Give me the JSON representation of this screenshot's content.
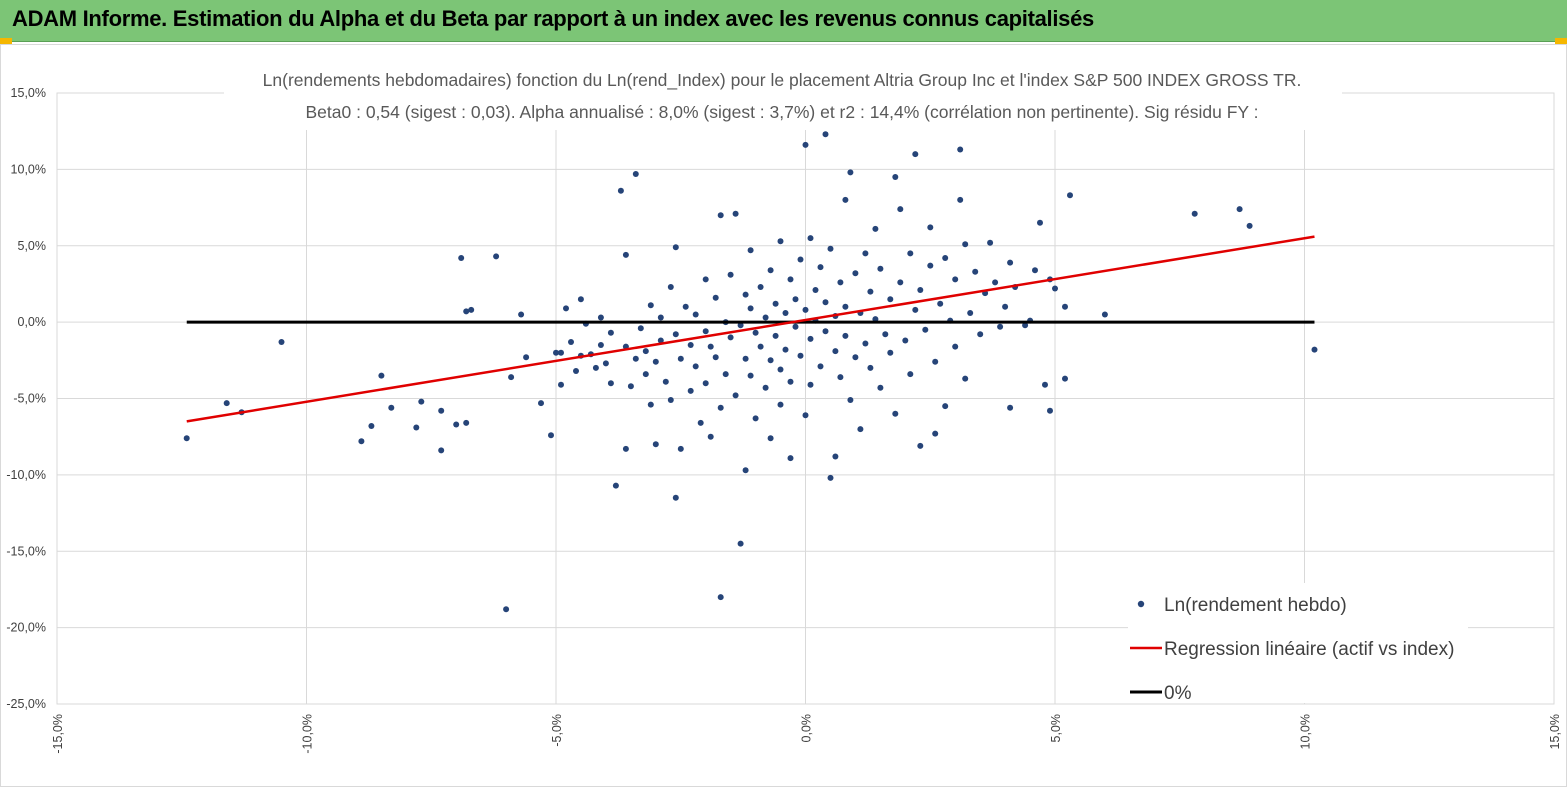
{
  "header": {
    "title": "ADAM Informe. Estimation du Alpha et du Beta par rapport à un index avec les revenus connus capitalisés"
  },
  "colors": {
    "banner": "#7cc576",
    "points": "#264478",
    "regression": "#e00000",
    "zero_line": "#000000",
    "corner_accent": "#f5b700"
  },
  "chart_data": {
    "type": "scatter",
    "title_lines": [
      "Ln(rendements hebdomadaires) fonction du Ln(rend_Index) pour le placement Altria Group Inc et l'index S&P 500 INDEX GROSS TR.",
      "Beta0 : 0,54  (sigest : 0,03). Alpha annualisé : 8,0% (sigest : 3,7%) et r2 : 14,4% (corrélation non pertinente). Sig résidu FY :"
    ],
    "xlim": [
      -15,
      15
    ],
    "ylim": [
      -25,
      15
    ],
    "x_ticks": [
      "-15,0%",
      "-10,0%",
      "-5,0%",
      "0,0%",
      "5,0%",
      "10,0%",
      "15,0%"
    ],
    "y_ticks": [
      "15,0%",
      "10,0%",
      "5,0%",
      "0,0%",
      "-5,0%",
      "-10,0%",
      "-15,0%",
      "-20,0%",
      "-25,0%"
    ],
    "grid": true,
    "legend_position": "bottom-right",
    "legend": [
      {
        "label": "Ln(rendement hebdo)",
        "kind": "marker"
      },
      {
        "label": "Regression linéaire (actif vs index)",
        "kind": "line"
      },
      {
        "label": "0%",
        "kind": "line"
      }
    ],
    "series": [
      {
        "name": "Ln(rendement hebdo)",
        "points": [
          [
            -12.4,
            -7.6
          ],
          [
            -11.6,
            -5.3
          ],
          [
            -11.3,
            -5.9
          ],
          [
            -10.5,
            -1.3
          ],
          [
            -8.9,
            -7.8
          ],
          [
            -8.7,
            -6.8
          ],
          [
            -8.5,
            -3.5
          ],
          [
            -8.3,
            -5.6
          ],
          [
            -7.8,
            -6.9
          ],
          [
            -7.7,
            -5.2
          ],
          [
            -7.3,
            -5.8
          ],
          [
            -7.3,
            -8.4
          ],
          [
            -7.0,
            -6.7
          ],
          [
            -6.9,
            4.2
          ],
          [
            -6.8,
            0.7
          ],
          [
            -6.8,
            -6.6
          ],
          [
            -6.7,
            0.8
          ],
          [
            -6.2,
            4.3
          ],
          [
            -6.0,
            -18.8
          ],
          [
            -5.9,
            -3.6
          ],
          [
            -5.7,
            0.5
          ],
          [
            -5.6,
            -2.3
          ],
          [
            -5.3,
            -5.3
          ],
          [
            -5.1,
            -7.4
          ],
          [
            -5.0,
            -2.0
          ],
          [
            -4.9,
            -2.0
          ],
          [
            -4.9,
            -4.1
          ],
          [
            -4.8,
            0.9
          ],
          [
            -4.7,
            -1.3
          ],
          [
            -4.6,
            -3.2
          ],
          [
            -4.5,
            1.5
          ],
          [
            -4.5,
            -2.2
          ],
          [
            -4.4,
            -0.1
          ],
          [
            -4.3,
            -2.1
          ],
          [
            -4.2,
            -3.0
          ],
          [
            -4.1,
            0.3
          ],
          [
            -4.1,
            -1.5
          ],
          [
            -4.0,
            -2.7
          ],
          [
            -3.9,
            -0.7
          ],
          [
            -3.9,
            -4.0
          ],
          [
            -3.8,
            -10.7
          ],
          [
            -3.7,
            8.6
          ],
          [
            -3.6,
            4.4
          ],
          [
            -3.6,
            -1.6
          ],
          [
            -3.6,
            -8.3
          ],
          [
            -3.5,
            -4.2
          ],
          [
            -3.4,
            9.7
          ],
          [
            -3.4,
            -2.4
          ],
          [
            -3.3,
            -0.4
          ],
          [
            -3.2,
            -1.9
          ],
          [
            -3.2,
            -3.4
          ],
          [
            -3.1,
            1.1
          ],
          [
            -3.1,
            -5.4
          ],
          [
            -3.0,
            -2.6
          ],
          [
            -3.0,
            -8.0
          ],
          [
            -2.9,
            0.3
          ],
          [
            -2.9,
            -1.2
          ],
          [
            -2.8,
            -3.9
          ],
          [
            -2.7,
            2.3
          ],
          [
            -2.7,
            -5.1
          ],
          [
            -2.6,
            4.9
          ],
          [
            -2.6,
            -0.8
          ],
          [
            -2.6,
            -11.5
          ],
          [
            -2.5,
            -2.4
          ],
          [
            -2.5,
            -8.3
          ],
          [
            -2.4,
            1.0
          ],
          [
            -2.3,
            -1.5
          ],
          [
            -2.3,
            -4.5
          ],
          [
            -2.2,
            0.5
          ],
          [
            -2.2,
            -2.9
          ],
          [
            -2.1,
            -6.6
          ],
          [
            -2.0,
            2.8
          ],
          [
            -2.0,
            -0.6
          ],
          [
            -2.0,
            -4.0
          ],
          [
            -1.9,
            -1.6
          ],
          [
            -1.9,
            -7.5
          ],
          [
            -1.8,
            1.6
          ],
          [
            -1.8,
            -2.3
          ],
          [
            -1.7,
            7.0
          ],
          [
            -1.7,
            -5.6
          ],
          [
            -1.7,
            -18.0
          ],
          [
            -1.6,
            0.0
          ],
          [
            -1.6,
            -3.4
          ],
          [
            -1.5,
            3.1
          ],
          [
            -1.5,
            -1.0
          ],
          [
            -1.4,
            7.1
          ],
          [
            -1.4,
            -4.8
          ],
          [
            -1.3,
            -0.2
          ],
          [
            -1.3,
            -14.5
          ],
          [
            -1.2,
            1.8
          ],
          [
            -1.2,
            -2.4
          ],
          [
            -1.2,
            -9.7
          ],
          [
            -1.1,
            4.7
          ],
          [
            -1.1,
            0.9
          ],
          [
            -1.1,
            -3.5
          ],
          [
            -1.0,
            -0.7
          ],
          [
            -1.0,
            -6.3
          ],
          [
            -0.9,
            2.3
          ],
          [
            -0.9,
            -1.6
          ],
          [
            -0.8,
            -4.3
          ],
          [
            -0.8,
            0.3
          ],
          [
            -0.7,
            3.4
          ],
          [
            -0.7,
            -2.5
          ],
          [
            -0.7,
            -7.6
          ],
          [
            -0.6,
            1.2
          ],
          [
            -0.6,
            -0.9
          ],
          [
            -0.5,
            5.3
          ],
          [
            -0.5,
            -3.1
          ],
          [
            -0.5,
            -5.4
          ],
          [
            -0.4,
            0.6
          ],
          [
            -0.4,
            -1.8
          ],
          [
            -0.3,
            2.8
          ],
          [
            -0.3,
            -8.9
          ],
          [
            -0.3,
            -3.9
          ],
          [
            -0.2,
            1.5
          ],
          [
            -0.2,
            -0.3
          ],
          [
            -0.1,
            4.1
          ],
          [
            -0.1,
            -2.2
          ],
          [
            0.0,
            11.6
          ],
          [
            0.0,
            0.8
          ],
          [
            0.0,
            -6.1
          ],
          [
            0.1,
            5.5
          ],
          [
            0.1,
            -1.1
          ],
          [
            0.1,
            -4.1
          ],
          [
            0.2,
            2.1
          ],
          [
            0.2,
            0.1
          ],
          [
            0.3,
            3.6
          ],
          [
            0.3,
            -2.9
          ],
          [
            0.4,
            1.3
          ],
          [
            0.4,
            -0.6
          ],
          [
            0.4,
            12.3
          ],
          [
            0.5,
            -10.2
          ],
          [
            0.5,
            4.8
          ],
          [
            0.6,
            0.4
          ],
          [
            0.6,
            -1.9
          ],
          [
            0.6,
            -8.8
          ],
          [
            0.7,
            2.6
          ],
          [
            0.7,
            -3.6
          ],
          [
            0.8,
            8.0
          ],
          [
            0.8,
            1.0
          ],
          [
            0.8,
            -0.9
          ],
          [
            0.9,
            9.8
          ],
          [
            0.9,
            -5.1
          ],
          [
            1.0,
            3.2
          ],
          [
            1.0,
            -2.3
          ],
          [
            1.1,
            0.6
          ],
          [
            1.1,
            -7.0
          ],
          [
            1.2,
            4.5
          ],
          [
            1.2,
            -1.4
          ],
          [
            1.3,
            2.0
          ],
          [
            1.3,
            -3.0
          ],
          [
            1.4,
            6.1
          ],
          [
            1.4,
            0.2
          ],
          [
            1.5,
            -4.3
          ],
          [
            1.5,
            3.5
          ],
          [
            1.6,
            -0.8
          ],
          [
            1.7,
            1.5
          ],
          [
            1.7,
            -2.0
          ],
          [
            1.8,
            9.5
          ],
          [
            1.8,
            -6.0
          ],
          [
            1.9,
            7.4
          ],
          [
            1.9,
            2.6
          ],
          [
            2.0,
            -1.2
          ],
          [
            2.1,
            4.5
          ],
          [
            2.1,
            -3.4
          ],
          [
            2.2,
            11.0
          ],
          [
            2.2,
            0.8
          ],
          [
            2.3,
            -8.1
          ],
          [
            2.3,
            2.1
          ],
          [
            2.4,
            -0.5
          ],
          [
            2.5,
            6.2
          ],
          [
            2.5,
            3.7
          ],
          [
            2.6,
            -2.6
          ],
          [
            2.6,
            -7.3
          ],
          [
            2.7,
            1.2
          ],
          [
            2.8,
            4.2
          ],
          [
            2.8,
            -5.5
          ],
          [
            2.9,
            0.1
          ],
          [
            3.0,
            2.8
          ],
          [
            3.0,
            -1.6
          ],
          [
            3.1,
            11.3
          ],
          [
            3.1,
            8.0
          ],
          [
            3.2,
            5.1
          ],
          [
            3.2,
            -3.7
          ],
          [
            3.3,
            0.6
          ],
          [
            3.4,
            3.3
          ],
          [
            3.5,
            -0.8
          ],
          [
            3.6,
            1.9
          ],
          [
            3.7,
            5.2
          ],
          [
            3.8,
            2.6
          ],
          [
            3.9,
            -0.3
          ],
          [
            4.0,
            1.0
          ],
          [
            4.1,
            -5.6
          ],
          [
            4.1,
            3.9
          ],
          [
            4.2,
            2.3
          ],
          [
            4.4,
            -0.2
          ],
          [
            4.5,
            0.1
          ],
          [
            4.6,
            3.4
          ],
          [
            4.7,
            6.5
          ],
          [
            4.8,
            -4.1
          ],
          [
            4.9,
            2.8
          ],
          [
            4.9,
            -5.8
          ],
          [
            5.0,
            2.2
          ],
          [
            5.2,
            1.0
          ],
          [
            5.2,
            -3.7
          ],
          [
            5.3,
            8.3
          ],
          [
            6.0,
            0.5
          ],
          [
            7.8,
            7.1
          ],
          [
            8.7,
            7.4
          ],
          [
            8.9,
            6.3
          ],
          [
            10.2,
            -1.8
          ]
        ]
      },
      {
        "name": "Regression linéaire (actif vs index)",
        "x": [
          -12.4,
          10.2
        ],
        "y": [
          -6.5,
          5.6
        ]
      },
      {
        "name": "0%",
        "x": [
          -12.4,
          10.2
        ],
        "y": [
          0,
          0
        ]
      }
    ]
  }
}
